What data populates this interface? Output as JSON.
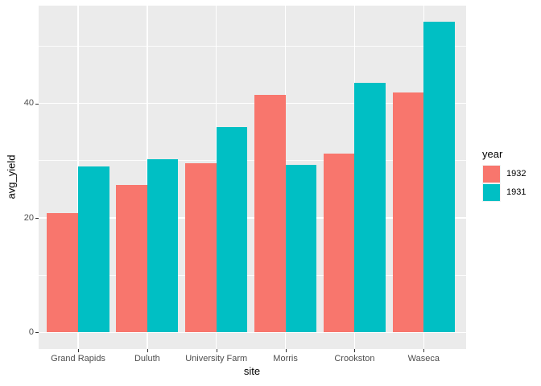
{
  "chart_data": {
    "type": "bar",
    "title": "",
    "xlabel": "site",
    "ylabel": "avg_yield",
    "categories": [
      "Grand Rapids",
      "Duluth",
      "University Farm",
      "Morris",
      "Crookston",
      "Waseca"
    ],
    "series": [
      {
        "name": "1932",
        "color": "#F8766D",
        "values": [
          20.81,
          25.7,
          29.51,
          41.51,
          31.18,
          41.87
        ]
      },
      {
        "name": "1931",
        "color": "#00BFC4",
        "values": [
          29.05,
          30.29,
          35.83,
          29.29,
          43.66,
          54.35
        ]
      }
    ],
    "y_ticks": [
      0,
      20,
      40
    ],
    "y_minor_ticks": [
      10,
      30,
      50
    ],
    "ylim": [
      -2.9,
      57.1
    ],
    "grid": true,
    "legend": {
      "title": "year",
      "position": "right"
    },
    "colors": {
      "panel_bg": "#EBEBEB",
      "grid": "#FFFFFF",
      "tick_label": "#4D4D4D",
      "axis_title": "#000000",
      "tick_mark": "#333333",
      "page_bg": "#FFFFFF"
    }
  }
}
